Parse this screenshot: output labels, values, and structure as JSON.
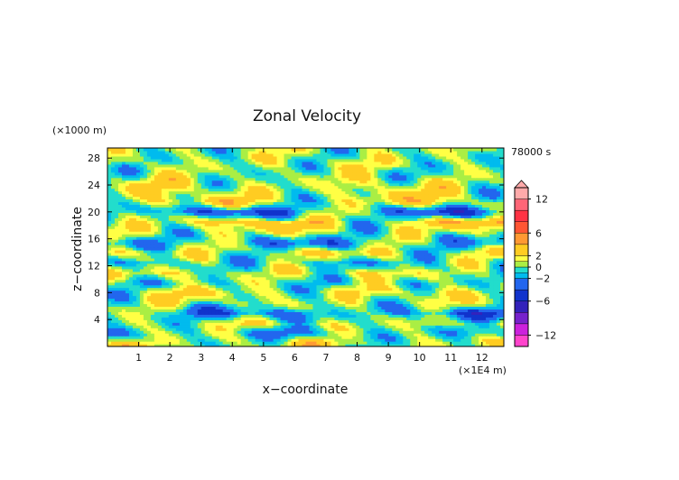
{
  "chart_data": {
    "type": "heatmap",
    "title": "Zonal Velocity",
    "xlabel": "x−coordinate",
    "ylabel": "z−coordinate",
    "x_unit": "(×1E4 m)",
    "y_unit": "(×1000 m)",
    "time_label": "78000 s",
    "xlim": [
      0,
      12.7
    ],
    "ylim": [
      0,
      29.5
    ],
    "x_ticks": [
      1,
      2,
      3,
      4,
      5,
      6,
      7,
      8,
      9,
      10,
      11,
      12
    ],
    "y_ticks": [
      4,
      8,
      12,
      16,
      20,
      24,
      28
    ],
    "colorbar_ticks": [
      "12",
      "6",
      "2",
      "0",
      "−2",
      "−6",
      "−12"
    ],
    "colorbar_levels": [
      -14,
      -12,
      -10,
      -8,
      -6,
      -4,
      -2,
      -1,
      0,
      1,
      2,
      4,
      6,
      8,
      10,
      12,
      14
    ],
    "colorbar_colors": [
      "#ff44cc",
      "#cc22dd",
      "#7722cc",
      "#3322bb",
      "#1133cc",
      "#2266ee",
      "#00bbee",
      "#22ddcc",
      "#aaee44",
      "#ffff44",
      "#ffcc22",
      "#ff9933",
      "#ff5533",
      "#ff3344",
      "#ff6677",
      "#ffaaaa"
    ],
    "bands": [
      {
        "z": 29.0,
        "v": 0.3
      },
      {
        "z": 27.5,
        "v": 0.8
      },
      {
        "z": 26.0,
        "v": 0.2
      },
      {
        "z": 24.5,
        "v": 1.2
      },
      {
        "z": 23.0,
        "v": 1.8
      },
      {
        "z": 21.5,
        "v": 2.2
      },
      {
        "z": 20.0,
        "v": -4.5
      },
      {
        "z": 18.5,
        "v": 3.5
      },
      {
        "z": 17.0,
        "v": 1.0
      },
      {
        "z": 15.5,
        "v": -3.0
      },
      {
        "z": 14.0,
        "v": 2.0
      },
      {
        "z": 12.5,
        "v": -1.5
      },
      {
        "z": 11.0,
        "v": 1.5
      },
      {
        "z": 9.5,
        "v": -0.5
      },
      {
        "z": 8.0,
        "v": 1.8
      },
      {
        "z": 6.5,
        "v": 0.6
      },
      {
        "z": 5.0,
        "v": -3.5
      },
      {
        "z": 3.5,
        "v": 1.2
      },
      {
        "z": 2.0,
        "v": -1.8
      },
      {
        "z": 0.5,
        "v": 1.5
      }
    ],
    "grid": false,
    "legend": "right"
  }
}
